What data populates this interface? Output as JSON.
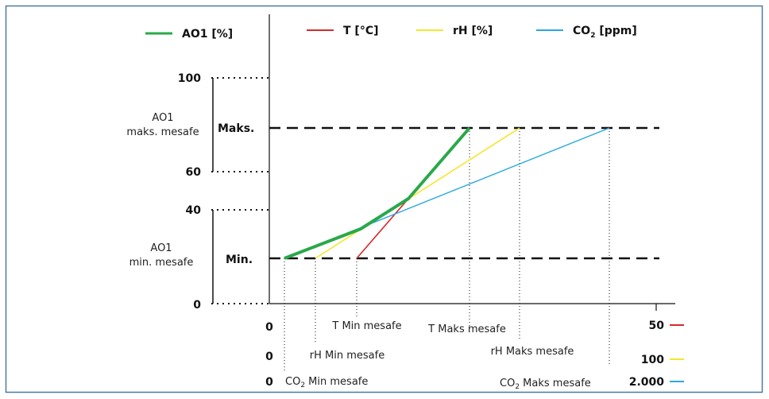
{
  "colors": {
    "frame": "#4a7aa3",
    "ao1": "#2aa84a",
    "temperature": "#d62a2a",
    "humidity": "#f4e62c",
    "co2": "#29a8e0",
    "axis": "#111111"
  },
  "legend": {
    "ao1": "AO1 [%]",
    "temperature": "T [°C]",
    "humidity": "rH [%]",
    "co2_prefix": "CO",
    "co2_sub": "2",
    "co2_suffix": " [ppm]"
  },
  "y_axis": {
    "tick_100": "100",
    "tick_60": "60",
    "tick_40": "40",
    "tick_0": "0",
    "max_label": "Maks.",
    "min_label": "Min.",
    "max_range_line1": "AO1",
    "max_range_line2": "maks. mesafe",
    "min_range_line1": "AO1",
    "min_range_line2": "min. mesafe"
  },
  "x_axis": {
    "row_t": {
      "zero": "0",
      "min": "T Min mesafe",
      "max": "T Maks mesafe",
      "end": "50"
    },
    "row_rh": {
      "zero": "0",
      "min": "rH Min mesafe",
      "max": "rH Maks mesafe",
      "end": "100"
    },
    "row_co2": {
      "zero": "0",
      "min_prefix": "CO",
      "min_sub": "2",
      "min_suffix": " Min mesafe",
      "max_prefix": "CO",
      "max_sub": "2",
      "max_suffix": " Maks mesafe",
      "end": "2.000"
    }
  }
}
